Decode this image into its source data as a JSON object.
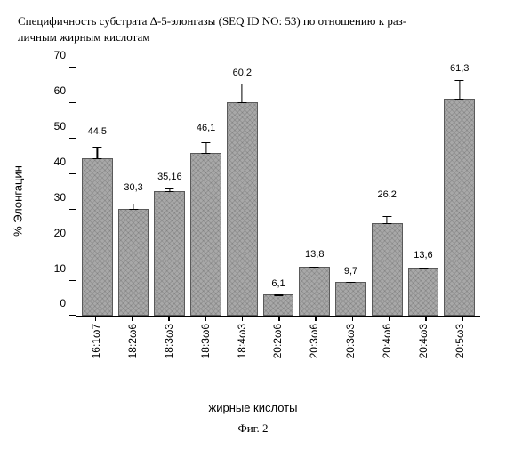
{
  "title_line1": "Специфичность субстрата Δ-5-элонгазы (SEQ ID NO: 53) по отношению к раз-",
  "title_line2": "личным жирным кислотам",
  "chart": {
    "type": "bar",
    "y_label": "% Элонгацин",
    "x_label": "жирные кислоты",
    "ylim_max": 70,
    "ytick_step": 10,
    "yticks": [
      0,
      10,
      20,
      30,
      40,
      50,
      60,
      70
    ],
    "categories": [
      "16:1ω7",
      "18:2ω6",
      "18:3ω3",
      "18:3ω6",
      "18:4ω3",
      "20:2ω6",
      "20:3ω6",
      "20:3ω3",
      "20:4ω6",
      "20:4ω3",
      "20:5ω3"
    ],
    "values": [
      44.5,
      30.3,
      35.16,
      46.1,
      60.2,
      6.1,
      13.8,
      9.7,
      26.2,
      13.6,
      61.3
    ],
    "value_labels": [
      "44,5",
      "30,3",
      "35,16",
      "46,1",
      "60,2",
      "6,1",
      "13,8",
      "9,7",
      "26,2",
      "13,6",
      "61,3"
    ],
    "errors": [
      5.5,
      4,
      2,
      5,
      6.5,
      1,
      1.5,
      1,
      6,
      1.5,
      6.5
    ],
    "bar_color": "#a8a8a8",
    "bar_border": "#5a5a5a",
    "axis_color": "#000000",
    "background_color": "#ffffff",
    "label_fontsize": 12,
    "title_fontsize": 13,
    "bar_width": 0.82
  },
  "caption": "Фиг. 2"
}
